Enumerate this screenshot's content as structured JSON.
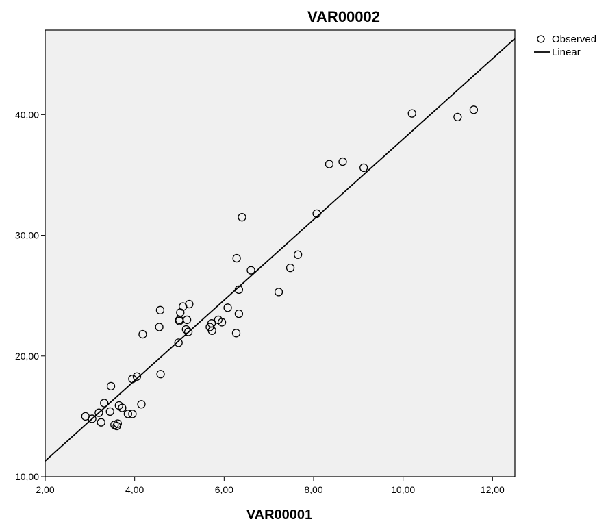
{
  "chart_data": {
    "type": "scatter",
    "title": "VAR00002",
    "xlabel": "VAR00001",
    "ylabel": "",
    "xlim": [
      2.0,
      12.5
    ],
    "ylim": [
      10.0,
      47.0
    ],
    "x_ticks": [
      2,
      4,
      6,
      8,
      10,
      12
    ],
    "x_tick_labels": [
      "2,00",
      "4,00",
      "6,00",
      "8,00",
      "10,00",
      "12,00"
    ],
    "y_ticks": [
      10,
      20,
      30,
      40
    ],
    "y_tick_labels": [
      "10,00",
      "20,00",
      "30,00",
      "40,00"
    ],
    "grid": false,
    "background_color": "#f0f0f0",
    "legend_position": "right",
    "legend": [
      {
        "label": "Observed",
        "marker": "open-circle"
      },
      {
        "label": "Linear",
        "marker": "line"
      }
    ],
    "series": [
      {
        "name": "Observed",
        "marker": "open-circle",
        "points": [
          [
            2.9,
            15.0
          ],
          [
            3.05,
            14.8
          ],
          [
            3.2,
            15.3
          ],
          [
            3.25,
            14.5
          ],
          [
            3.32,
            16.1
          ],
          [
            3.45,
            15.4
          ],
          [
            3.47,
            17.5
          ],
          [
            3.55,
            14.3
          ],
          [
            3.6,
            14.2
          ],
          [
            3.62,
            14.4
          ],
          [
            3.65,
            15.9
          ],
          [
            3.72,
            15.7
          ],
          [
            3.85,
            15.2
          ],
          [
            3.95,
            15.2
          ],
          [
            3.95,
            18.1
          ],
          [
            4.05,
            18.3
          ],
          [
            4.15,
            16.0
          ],
          [
            4.18,
            21.8
          ],
          [
            4.55,
            22.4
          ],
          [
            4.57,
            23.8
          ],
          [
            4.58,
            18.5
          ],
          [
            4.98,
            21.1
          ],
          [
            5.0,
            23.0
          ],
          [
            5.0,
            22.9
          ],
          [
            5.02,
            23.6
          ],
          [
            5.08,
            24.1
          ],
          [
            5.15,
            22.2
          ],
          [
            5.17,
            23.0
          ],
          [
            5.2,
            22.0
          ],
          [
            5.22,
            24.3
          ],
          [
            5.68,
            22.4
          ],
          [
            5.72,
            22.7
          ],
          [
            5.73,
            22.1
          ],
          [
            5.87,
            23.0
          ],
          [
            5.95,
            22.8
          ],
          [
            6.08,
            24.0
          ],
          [
            6.27,
            21.9
          ],
          [
            6.28,
            28.1
          ],
          [
            6.33,
            23.5
          ],
          [
            6.33,
            25.5
          ],
          [
            6.4,
            31.5
          ],
          [
            6.6,
            27.1
          ],
          [
            7.22,
            25.3
          ],
          [
            7.48,
            27.3
          ],
          [
            7.65,
            28.4
          ],
          [
            8.07,
            31.8
          ],
          [
            8.35,
            35.9
          ],
          [
            8.65,
            36.1
          ],
          [
            9.12,
            35.6
          ],
          [
            10.2,
            40.1
          ],
          [
            11.22,
            39.8
          ],
          [
            11.58,
            40.4
          ]
        ]
      },
      {
        "name": "Linear",
        "type": "line",
        "x": [
          2.0,
          12.5
        ],
        "y": [
          11.3,
          46.3
        ]
      }
    ]
  }
}
